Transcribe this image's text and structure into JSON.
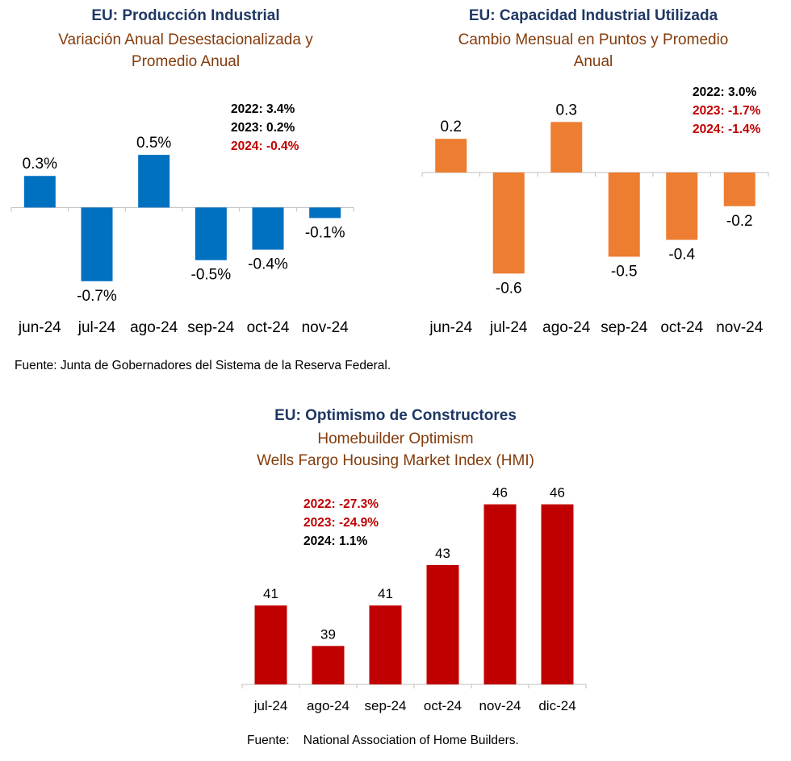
{
  "charts": {
    "ip": {
      "title": "EU: Producción Industrial",
      "subtitle_line1": "Variación Anual Desestacionalizada y",
      "subtitle_line2": "Promedio Anual",
      "stats": [
        {
          "text": "2022: 3.4%",
          "color": "#000000"
        },
        {
          "text": "2023: 0.2%",
          "color": "#000000"
        },
        {
          "text": "2024: -0.4%",
          "color": "#c00000"
        }
      ]
    },
    "cap": {
      "title": "EU: Capacidad Industrial Utilizada",
      "subtitle_line1": "Cambio Mensual en Puntos y Promedio",
      "subtitle_line2": "Anual",
      "stats": [
        {
          "text": "2022: 3.0%",
          "color": "#000000"
        },
        {
          "text": "2023: -1.7%",
          "color": "#c00000"
        },
        {
          "text": "2024: -1.4%",
          "color": "#c00000"
        }
      ]
    },
    "hmi": {
      "title": "EU: Optimismo de Constructores",
      "subtitle_line1": "Homebuilder Optimism",
      "subtitle_line2": "Wells Fargo Housing Market Index (HMI)",
      "stats": [
        {
          "text": "2022: -27.3%",
          "color": "#c00000"
        },
        {
          "text": "2023: -24.9%",
          "color": "#c00000"
        },
        {
          "text": "2024: 1.1%",
          "color": "#000000"
        }
      ]
    }
  },
  "sources": {
    "top": "Fuente: Junta de Gobernadores del Sistema de la Reserva Federal.",
    "bottom": "Fuente:    National Association of Home Builders."
  },
  "chart_data": [
    {
      "type": "bar",
      "title": "EU: Producción Industrial",
      "subtitle": "Variación Anual Desestacionalizada y Promedio Anual",
      "categories": [
        "jun-24",
        "jul-24",
        "ago-24",
        "sep-24",
        "oct-24",
        "nov-24"
      ],
      "values": [
        0.3,
        -0.7,
        0.5,
        -0.5,
        -0.4,
        -0.1
      ],
      "labels": [
        "0.3%",
        "-0.7%",
        "0.5%",
        "-0.5%",
        "-0.4%",
        "-0.1%"
      ],
      "color": "#0070c0",
      "ylim": [
        -1.0,
        0.7
      ],
      "grid": false,
      "xlabel": "",
      "ylabel": ""
    },
    {
      "type": "bar",
      "title": "EU: Capacidad Industrial Utilizada",
      "subtitle": "Cambio Mensual en Puntos y Promedio Anual",
      "categories": [
        "jun-24",
        "jul-24",
        "ago-24",
        "sep-24",
        "oct-24",
        "nov-24"
      ],
      "values": [
        0.2,
        -0.6,
        0.3,
        -0.5,
        -0.4,
        -0.2
      ],
      "labels": [
        "0.2",
        "-0.6",
        "0.3",
        "-0.5",
        "-0.4",
        "-0.2"
      ],
      "color": "#ed7d31",
      "ylim": [
        -0.9,
        0.45
      ],
      "grid": false,
      "xlabel": "",
      "ylabel": ""
    },
    {
      "type": "bar",
      "title": "EU: Optimismo de Constructores",
      "subtitle": "Homebuilder Optimism Wells Fargo Housing Market Index (HMI)",
      "categories": [
        "jul-24",
        "ago-24",
        "sep-24",
        "oct-24",
        "nov-24",
        "dic-24"
      ],
      "values": [
        41,
        39,
        41,
        43,
        46,
        46
      ],
      "labels": [
        "41",
        "39",
        "41",
        "43",
        "46",
        "46"
      ],
      "color": "#c00000",
      "ylim": [
        37.1,
        46.9
      ],
      "grid": false,
      "xlabel": "",
      "ylabel": ""
    }
  ]
}
